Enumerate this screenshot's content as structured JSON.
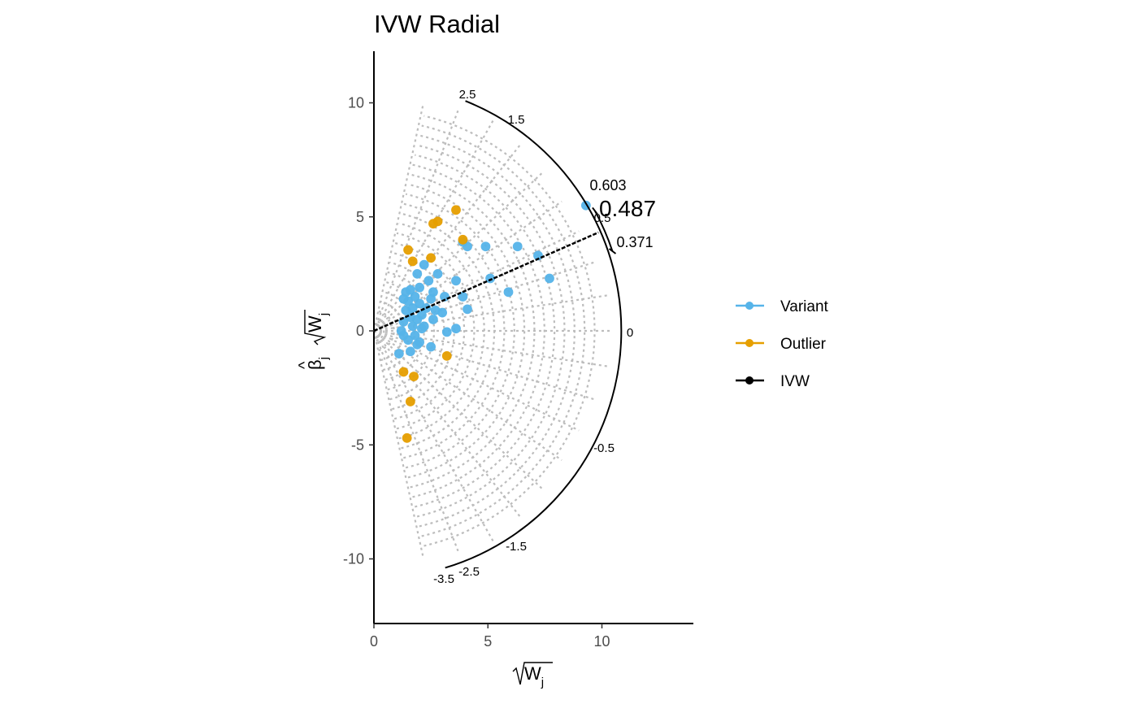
{
  "chart_data": {
    "type": "scatter",
    "title": "IVW Radial",
    "xlabel": "√Wj",
    "ylabel": "β̂j √Wj",
    "xlim": [
      0,
      14
    ],
    "ylim": [
      -12.5,
      12.5
    ],
    "x_ticks": [
      0,
      5,
      10
    ],
    "y_ticks": [
      -10,
      -5,
      0,
      5,
      10
    ],
    "grid": false,
    "legend_position": "right",
    "colors": {
      "variant": "#56B4E9",
      "outlier": "#E69F00",
      "ivw": "#000000",
      "guides": "#bdbdbd"
    },
    "radius": 10.85,
    "slope_scale_labels": [
      "2.5",
      "1.5",
      "0",
      "-0.5",
      "-1.5",
      "-2.5",
      "-3.5"
    ],
    "ivw_estimate": {
      "label": "0.487",
      "value": 0.487,
      "ci_lower_label": "0.371",
      "ci_upper_label": "0.603",
      "mid_label": "0.5"
    },
    "legend": [
      {
        "key": "variant",
        "label": "Variant"
      },
      {
        "key": "outlier",
        "label": "Outlier"
      },
      {
        "key": "ivw",
        "label": "IVW"
      }
    ],
    "series": [
      {
        "name": "Variant",
        "points": [
          [
            9.3,
            5.5
          ],
          [
            7.7,
            2.3
          ],
          [
            7.2,
            3.3
          ],
          [
            6.3,
            3.7
          ],
          [
            5.9,
            1.7
          ],
          [
            4.9,
            3.7
          ],
          [
            5.1,
            2.3
          ],
          [
            4.1,
            3.7
          ],
          [
            3.9,
            3.9
          ],
          [
            4.1,
            0.95
          ],
          [
            3.9,
            1.5
          ],
          [
            3.6,
            2.2
          ],
          [
            3.6,
            0.1
          ],
          [
            3.1,
            1.5
          ],
          [
            3.2,
            -0.05
          ],
          [
            2.8,
            2.5
          ],
          [
            2.7,
            0.9
          ],
          [
            2.6,
            1.7
          ],
          [
            2.5,
            1.4
          ],
          [
            2.4,
            2.2
          ],
          [
            2.3,
            1.0
          ],
          [
            2.2,
            2.9
          ],
          [
            2.1,
            0.7
          ],
          [
            2.1,
            0.1
          ],
          [
            2.0,
            1.9
          ],
          [
            2.0,
            1.2
          ],
          [
            1.9,
            2.5
          ],
          [
            1.9,
            0.5
          ],
          [
            1.8,
            1.5
          ],
          [
            1.7,
            1.0
          ],
          [
            1.7,
            0.2
          ],
          [
            1.6,
            1.8
          ],
          [
            1.6,
            0.6
          ],
          [
            1.5,
            1.3
          ],
          [
            1.5,
            -0.4
          ],
          [
            1.4,
            1.7
          ],
          [
            1.4,
            0.9
          ],
          [
            1.3,
            0.4
          ],
          [
            1.3,
            1.4
          ],
          [
            1.2,
            0.0
          ],
          [
            2.5,
            -0.7
          ],
          [
            2.0,
            -0.5
          ],
          [
            1.8,
            -0.2
          ],
          [
            1.6,
            -0.9
          ],
          [
            2.2,
            0.2
          ],
          [
            1.1,
            -1.0
          ],
          [
            2.6,
            0.5
          ],
          [
            3.0,
            0.8
          ],
          [
            1.9,
            -0.6
          ],
          [
            1.3,
            -0.2
          ]
        ]
      },
      {
        "name": "Outlier",
        "points": [
          [
            3.6,
            5.3
          ],
          [
            2.8,
            4.8
          ],
          [
            2.6,
            4.7
          ],
          [
            3.9,
            4.0
          ],
          [
            1.5,
            3.55
          ],
          [
            2.5,
            3.2
          ],
          [
            1.7,
            3.05
          ],
          [
            1.3,
            -1.8
          ],
          [
            1.75,
            -2.0
          ],
          [
            3.2,
            -1.1
          ],
          [
            1.6,
            -3.1
          ],
          [
            1.45,
            -4.7
          ]
        ]
      }
    ]
  }
}
